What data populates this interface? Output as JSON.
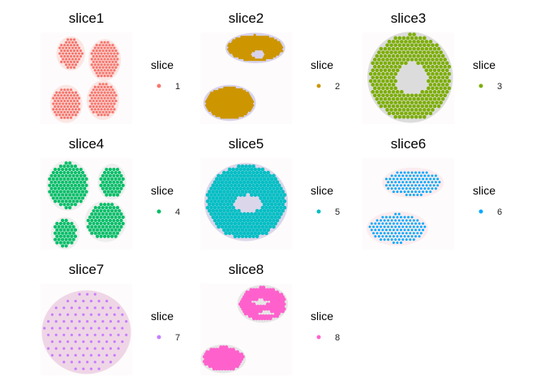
{
  "chart_data": {
    "type": "scatter",
    "legend_placement": "right",
    "grid": false,
    "panels": [
      {
        "title": "slice1",
        "legend_title": "slice",
        "legend_label": "1",
        "color": "#F8766D",
        "tissue_color": "#fbe6e4",
        "shapes": [
          {
            "kind": "ellipse",
            "cx": 0.33,
            "cy": 0.23,
            "rx": 0.13,
            "ry": 0.16
          },
          {
            "kind": "ellipse",
            "cx": 0.7,
            "cy": 0.3,
            "rx": 0.15,
            "ry": 0.2
          },
          {
            "kind": "ellipse",
            "cx": 0.28,
            "cy": 0.78,
            "rx": 0.15,
            "ry": 0.18
          },
          {
            "kind": "ellipse",
            "cx": 0.68,
            "cy": 0.74,
            "rx": 0.15,
            "ry": 0.19
          }
        ],
        "holes": [],
        "spacing": 0.035,
        "point_r": 1.6
      },
      {
        "title": "slice2",
        "legend_title": "slice",
        "legend_label": "2",
        "color": "#CD9600",
        "tissue_color": "#d8d2ec",
        "shapes": [
          {
            "kind": "ellipse",
            "cx": 0.6,
            "cy": 0.17,
            "rx": 0.3,
            "ry": 0.14
          },
          {
            "kind": "ellipse",
            "cx": 0.32,
            "cy": 0.77,
            "rx": 0.26,
            "ry": 0.17
          }
        ],
        "holes": [
          {
            "cx": 0.63,
            "cy": 0.24,
            "rx": 0.07,
            "ry": 0.05
          }
        ],
        "spacing": 0.022,
        "point_r": 1.6
      },
      {
        "title": "slice3",
        "legend_title": "slice",
        "legend_label": "3",
        "color": "#7CAE00",
        "tissue_color": "#dcdcdc",
        "shapes": [
          {
            "kind": "ellipse",
            "cx": 0.52,
            "cy": 0.49,
            "rx": 0.44,
            "ry": 0.47
          }
        ],
        "holes": [
          {
            "cx": 0.54,
            "cy": 0.5,
            "rx": 0.18,
            "ry": 0.17
          }
        ],
        "spacing": 0.045,
        "point_r": 2.3
      },
      {
        "title": "slice4",
        "legend_title": "slice",
        "legend_label": "4",
        "color": "#00BE67",
        "tissue_color": "#eeeeee",
        "shapes": [
          {
            "kind": "ellipse",
            "cx": 0.3,
            "cy": 0.3,
            "rx": 0.21,
            "ry": 0.25
          },
          {
            "kind": "ellipse",
            "cx": 0.78,
            "cy": 0.26,
            "rx": 0.13,
            "ry": 0.17
          },
          {
            "kind": "ellipse",
            "cx": 0.27,
            "cy": 0.82,
            "rx": 0.13,
            "ry": 0.15
          },
          {
            "kind": "ellipse",
            "cx": 0.71,
            "cy": 0.69,
            "rx": 0.2,
            "ry": 0.2
          }
        ],
        "holes": [],
        "spacing": 0.04,
        "point_r": 2.1
      },
      {
        "title": "slice5",
        "legend_title": "slice",
        "legend_label": "5",
        "color": "#00BFC4",
        "tissue_color": "#dcd6ea",
        "shapes": [
          {
            "kind": "ellipse",
            "cx": 0.5,
            "cy": 0.48,
            "rx": 0.43,
            "ry": 0.4
          }
        ],
        "holes": [
          {
            "cx": 0.52,
            "cy": 0.5,
            "rx": 0.15,
            "ry": 0.1
          }
        ],
        "spacing": 0.04,
        "point_r": 2.3
      },
      {
        "title": "slice6",
        "legend_title": "slice",
        "legend_label": "6",
        "color": "#00A9FF",
        "tissue_color": "#fcecef",
        "shapes": [
          {
            "kind": "ellipse",
            "cx": 0.55,
            "cy": 0.27,
            "rx": 0.31,
            "ry": 0.14
          },
          {
            "kind": "ellipse",
            "cx": 0.38,
            "cy": 0.77,
            "rx": 0.31,
            "ry": 0.16
          }
        ],
        "holes": [],
        "spacing": 0.04,
        "point_r": 1.5
      },
      {
        "title": "slice7",
        "legend_title": "slice",
        "legend_label": "7",
        "color": "#C77CFF",
        "tissue_color": "#efd6e6",
        "shapes": [
          {
            "kind": "ellipse",
            "cx": 0.5,
            "cy": 0.53,
            "rx": 0.46,
            "ry": 0.43
          }
        ],
        "holes": [],
        "spacing": 0.085,
        "point_r": 1.6
      },
      {
        "title": "slice8",
        "legend_title": "slice",
        "legend_label": "8",
        "color": "#FF61CC",
        "tissue_color": "#e6e6e6",
        "shapes": [
          {
            "kind": "ellipse",
            "cx": 0.68,
            "cy": 0.22,
            "rx": 0.25,
            "ry": 0.18
          },
          {
            "kind": "ellipse",
            "cx": 0.25,
            "cy": 0.82,
            "rx": 0.22,
            "ry": 0.13
          }
        ],
        "holes": [
          {
            "cx": 0.66,
            "cy": 0.2,
            "rx": 0.12,
            "ry": 0.03
          },
          {
            "cx": 0.72,
            "cy": 0.32,
            "rx": 0.1,
            "ry": 0.02
          }
        ],
        "spacing": 0.03,
        "point_r": 2.2
      }
    ]
  }
}
